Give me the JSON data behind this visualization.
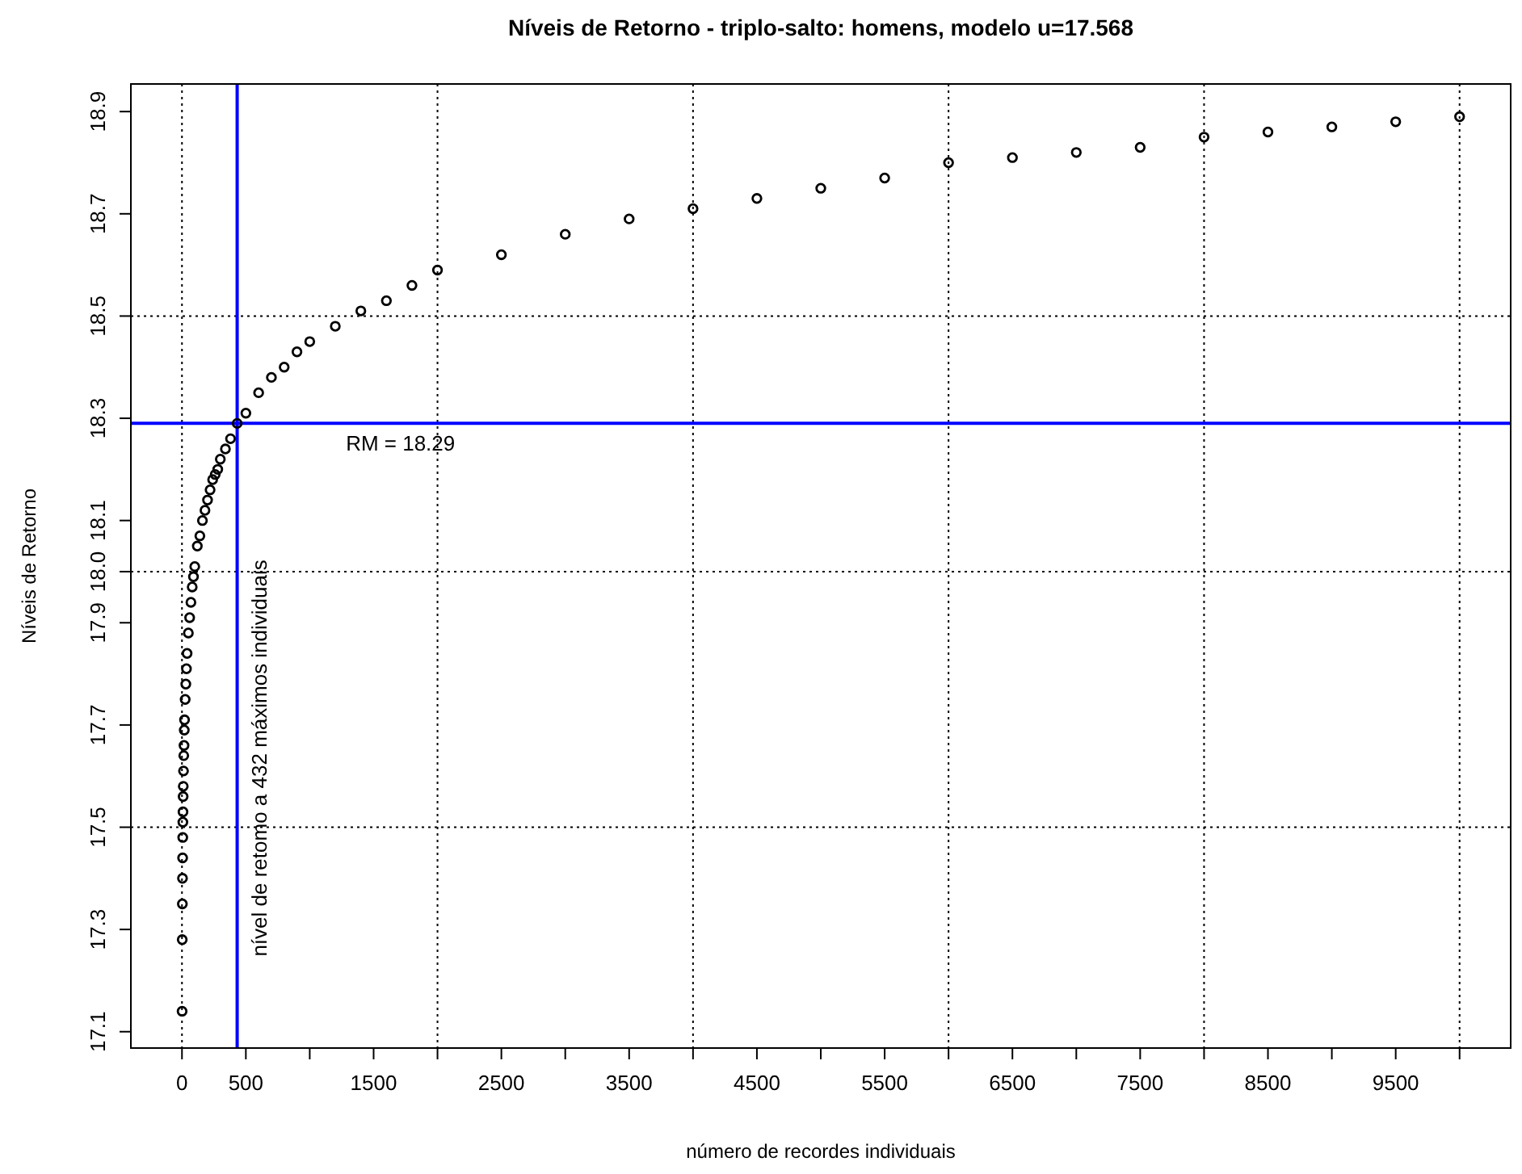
{
  "chart_data": {
    "type": "scatter",
    "title": "Níveis de Retorno - triplo-salto: homens, modelo u=17.568",
    "xlabel": "número de recordes individuais",
    "ylabel": "Níveis de Retorno",
    "marker": "circle",
    "x": [
      1,
      2,
      3,
      4,
      5,
      6,
      7,
      8,
      9,
      10,
      12,
      14,
      16,
      18,
      20,
      25,
      30,
      35,
      40,
      50,
      60,
      70,
      80,
      90,
      100,
      120,
      140,
      160,
      180,
      200,
      220,
      240,
      260,
      280,
      300,
      340,
      380,
      432,
      500,
      600,
      700,
      800,
      900,
      1000,
      1200,
      1400,
      1600,
      1800,
      2000,
      2500,
      3000,
      3500,
      4000,
      4500,
      5000,
      5500,
      6000,
      6500,
      7000,
      7500,
      8000,
      8500,
      9000,
      9500,
      10000
    ],
    "series": [
      {
        "color": "#000000",
        "values": [
          17.14,
          17.28,
          17.35,
          17.4,
          17.44,
          17.48,
          17.51,
          17.53,
          17.56,
          17.58,
          17.61,
          17.64,
          17.66,
          17.69,
          17.71,
          17.75,
          17.78,
          17.81,
          17.84,
          17.88,
          17.91,
          17.94,
          17.97,
          17.99,
          18.01,
          18.05,
          18.07,
          18.1,
          18.12,
          18.14,
          18.16,
          18.18,
          18.19,
          18.2,
          18.22,
          18.24,
          18.26,
          18.29,
          18.31,
          18.35,
          18.38,
          18.4,
          18.43,
          18.45,
          18.48,
          18.51,
          18.53,
          18.56,
          18.59,
          18.62,
          18.66,
          18.69,
          18.71,
          18.73,
          18.75,
          18.77,
          18.8,
          18.81,
          18.82,
          18.83,
          18.85,
          18.86,
          18.87,
          18.88,
          18.89
        ]
      }
    ],
    "xlim": [
      -400,
      10400
    ],
    "ylim": [
      17.068,
      18.954
    ],
    "xticks": [
      0,
      500,
      {
        "value": 1000,
        "label": null
      },
      1500,
      {
        "value": 2000,
        "label": null
      },
      2500,
      {
        "value": 3000,
        "label": null
      },
      3500,
      {
        "value": 4000,
        "label": null
      },
      4500,
      {
        "value": 5000,
        "label": null
      },
      5500,
      {
        "value": 6000,
        "label": null
      },
      6500,
      {
        "value": 7000,
        "label": null
      },
      7500,
      {
        "value": 8000,
        "label": null
      },
      8500,
      {
        "value": 9000,
        "label": null
      },
      9500,
      {
        "value": 10000,
        "label": null
      }
    ],
    "yticks": [
      17.1,
      17.3,
      17.5,
      17.7,
      17.9,
      {
        "value": 18.0,
        "label": "18.0"
      },
      18.1,
      18.3,
      18.5,
      18.7,
      18.9
    ],
    "ref_lines": [
      {
        "axis": "x",
        "value": 0,
        "color": "#000000",
        "line_style": "dotted"
      },
      {
        "axis": "x",
        "value": 2000,
        "color": "#000000",
        "line_style": "dotted"
      },
      {
        "axis": "x",
        "value": 4000,
        "color": "#000000",
        "line_style": "dotted"
      },
      {
        "axis": "x",
        "value": 6000,
        "color": "#000000",
        "line_style": "dotted"
      },
      {
        "axis": "x",
        "value": 8000,
        "color": "#000000",
        "line_style": "dotted"
      },
      {
        "axis": "x",
        "value": 10000,
        "color": "#000000",
        "line_style": "dotted"
      },
      {
        "axis": "y",
        "value": 17.5,
        "color": "#000000",
        "line_style": "dotted"
      },
      {
        "axis": "y",
        "value": 18.0,
        "color": "#000000",
        "line_style": "dotted"
      },
      {
        "axis": "y",
        "value": 18.5,
        "color": "#000000",
        "line_style": "dotted"
      },
      {
        "axis": "x",
        "value": 432,
        "label": "nível de retomo a 432 máximos individuais",
        "color": "#0000ff",
        "line_style": "solid"
      },
      {
        "axis": "y",
        "value": 18.29,
        "label": "RM = 18.29",
        "color": "#0000ff",
        "line_style": "solid"
      }
    ]
  }
}
